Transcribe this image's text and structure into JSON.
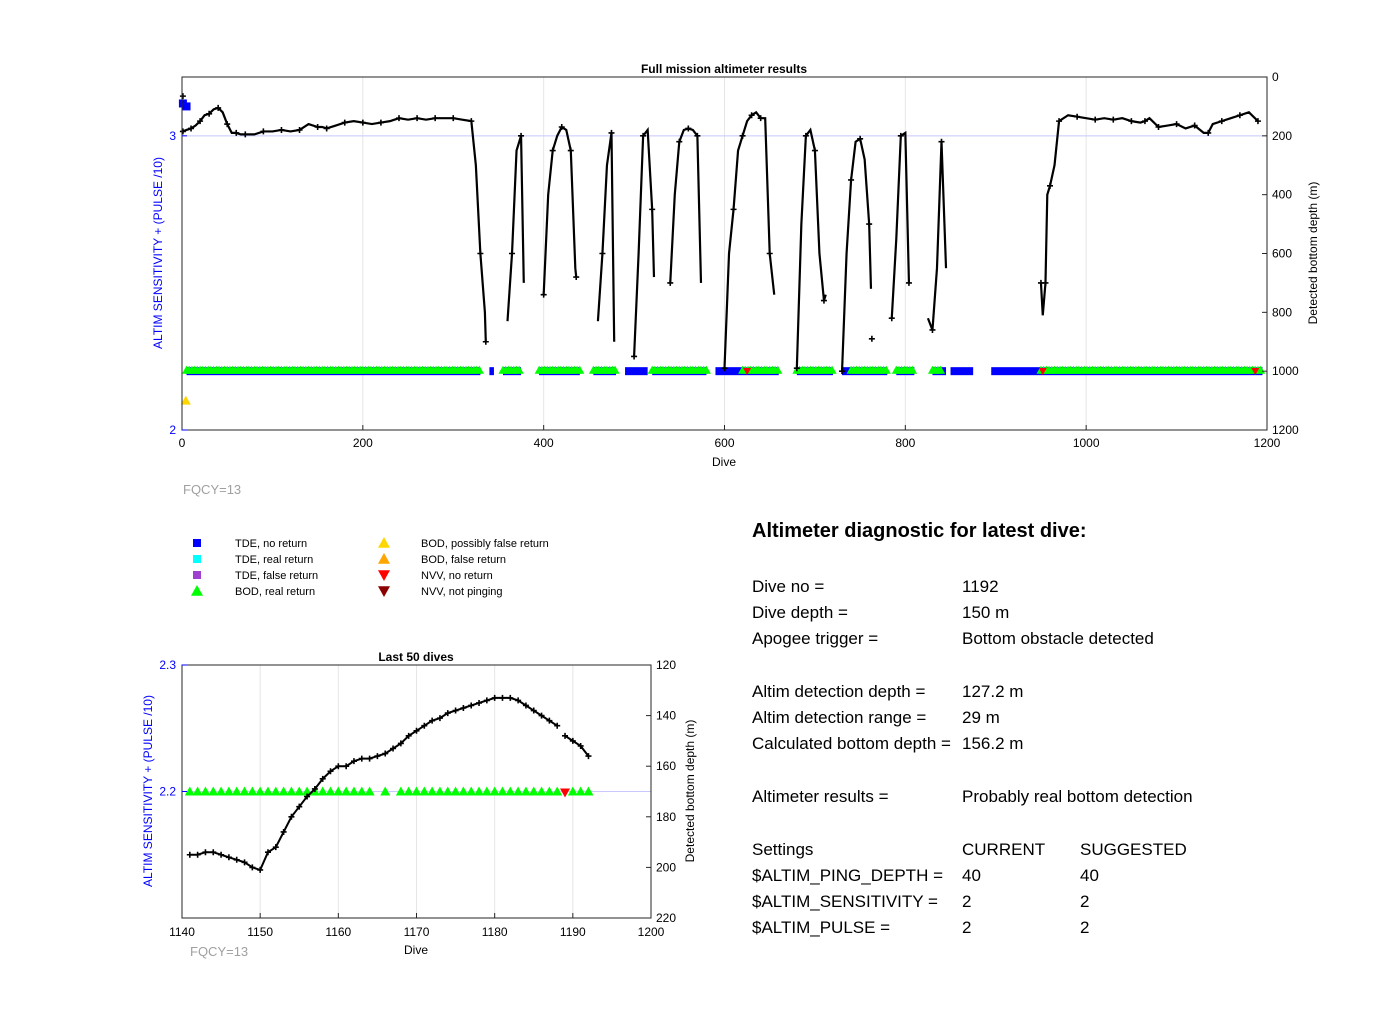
{
  "colors": {
    "tde_no_return": "#0000ff",
    "tde_real_return": "#00ffff",
    "tde_false_return": "#a040d0",
    "bod_real_return": "#00ff00",
    "bod_possibly_false": "#ffd700",
    "bod_false_return": "#ffa500",
    "nvv_no_return": "#ff0000",
    "nvv_not_pinging": "#8b0000",
    "left_axis": "#0000ff",
    "grid": "#e6e6e6",
    "fqcy": "#a0a0a0"
  },
  "main_chart": {
    "title": "Full mission altimeter results",
    "xlabel": "Dive",
    "ylabel_left": "ALTIM SENSITIVITY + (PULSE /10)",
    "ylabel_right": "Detected bottom depth (m)",
    "fqcy": "FQCY=13"
  },
  "inset_chart": {
    "title": "Last 50 dives",
    "xlabel": "Dive",
    "ylabel_left": "ALTIM SENSITIVITY + (PULSE /10)",
    "ylabel_right": "Detected bottom depth (m)",
    "fqcy": "FQCY=13"
  },
  "legend": [
    {
      "label": "TDE, no return",
      "marker": "square",
      "color_key": "tde_no_return"
    },
    {
      "label": "TDE, real return",
      "marker": "square",
      "color_key": "tde_real_return"
    },
    {
      "label": "TDE, false return",
      "marker": "square",
      "color_key": "tde_false_return"
    },
    {
      "label": "BOD, real return",
      "marker": "triangle-up",
      "color_key": "bod_real_return"
    },
    {
      "label": "BOD, possibly false return",
      "marker": "triangle-up",
      "color_key": "bod_possibly_false"
    },
    {
      "label": "BOD, false return",
      "marker": "triangle-up",
      "color_key": "bod_false_return"
    },
    {
      "label": "NVV, no return",
      "marker": "triangle-down",
      "color_key": "nvv_no_return"
    },
    {
      "label": "NVV, not pinging",
      "marker": "triangle-down",
      "color_key": "nvv_not_pinging"
    }
  ],
  "diagnostic": {
    "title": "Altimeter diagnostic for latest dive:",
    "dive_no_label": "Dive no =",
    "dive_no": "1192",
    "dive_depth_label": "Dive depth =",
    "dive_depth": "150 m",
    "apogee_label": "Apogee trigger =",
    "apogee": "Bottom obstacle detected",
    "altim_depth_label": "Altim detection depth =",
    "altim_depth": "127.2 m",
    "altim_range_label": "Altim detection range =",
    "altim_range": "29 m",
    "calc_depth_label": "Calculated bottom depth =",
    "calc_depth": "156.2 m",
    "results_label": "Altimeter results =",
    "results": "Probably real bottom detection",
    "settings_label": "Settings",
    "current_label": "CURRENT",
    "suggested_label": "SUGGESTED",
    "settings": [
      {
        "name": "$ALTIM_PING_DEPTH =",
        "current": "40",
        "suggested": "40"
      },
      {
        "name": "$ALTIM_SENSITIVITY =",
        "current": "2",
        "suggested": "2"
      },
      {
        "name": "$ALTIM_PULSE =",
        "current": "2",
        "suggested": "2"
      }
    ]
  },
  "chart_data": [
    {
      "type": "scatter",
      "name": "main",
      "title": "Full mission altimeter results",
      "xlabel": "Dive",
      "ylabel_left": "ALTIM SENSITIVITY + (PULSE /10)",
      "ylabel_right": "Detected bottom depth (m)",
      "xlim": [
        0,
        1200
      ],
      "ylim_left": [
        2,
        3.2
      ],
      "ylim_right_reversed": [
        0,
        1200
      ],
      "xticks": [
        0,
        200,
        400,
        600,
        800,
        1000,
        1200
      ],
      "yticks_left": [
        2,
        3
      ],
      "yticks_right": [
        0,
        200,
        400,
        600,
        800,
        1000,
        1200
      ],
      "grid": true,
      "bottom_depth": {
        "x": [
          1,
          5,
          10,
          15,
          20,
          25,
          30,
          35,
          40,
          45,
          50,
          55,
          60,
          65,
          70,
          80,
          90,
          100,
          110,
          120,
          130,
          140,
          150,
          155,
          160,
          170,
          180,
          190,
          200,
          210,
          220,
          230,
          240,
          250,
          260,
          270,
          280,
          290,
          300,
          310,
          320,
          325,
          330,
          335,
          336,
          360,
          365,
          370,
          375,
          378,
          400,
          405,
          410,
          415,
          420,
          425,
          430,
          435,
          436,
          460,
          465,
          470,
          475,
          478,
          500,
          505,
          510,
          515,
          520,
          522,
          540,
          545,
          550,
          555,
          560,
          565,
          570,
          574,
          600,
          605,
          610,
          615,
          620,
          625,
          630,
          635,
          640,
          645,
          650,
          655,
          680,
          685,
          690,
          695,
          700,
          705,
          710,
          712,
          730,
          735,
          740,
          745,
          750,
          755,
          760,
          762,
          785,
          790,
          795,
          800,
          804,
          825,
          830,
          835,
          840,
          845,
          950,
          952,
          955,
          957,
          960,
          965,
          970,
          980,
          990,
          1000,
          1010,
          1020,
          1030,
          1040,
          1050,
          1060,
          1065,
          1070,
          1080,
          1090,
          1100,
          1110,
          1120,
          1130,
          1135,
          1140,
          1150,
          1160,
          1170,
          1180,
          1190
        ],
        "y": [
          185,
          180,
          175,
          165,
          150,
          130,
          125,
          110,
          105,
          120,
          160,
          190,
          190,
          195,
          195,
          195,
          185,
          185,
          180,
          185,
          180,
          160,
          170,
          170,
          175,
          165,
          155,
          150,
          155,
          160,
          155,
          150,
          140,
          145,
          140,
          145,
          140,
          140,
          140,
          145,
          150,
          300,
          600,
          800,
          900,
          830,
          600,
          250,
          200,
          700,
          740,
          400,
          250,
          200,
          170,
          180,
          250,
          650,
          680,
          830,
          600,
          300,
          190,
          900,
          950,
          600,
          200,
          180,
          450,
          680,
          700,
          400,
          220,
          180,
          175,
          180,
          200,
          700,
          990,
          600,
          450,
          250,
          200,
          150,
          130,
          120,
          140,
          140,
          600,
          740,
          990,
          500,
          200,
          180,
          250,
          600,
          760,
          740,
          1000,
          600,
          350,
          220,
          210,
          280,
          500,
          720,
          820,
          550,
          200,
          190,
          700,
          820,
          860,
          650,
          220,
          650,
          700,
          810,
          700,
          400,
          370,
          300,
          150,
          130,
          135,
          140,
          145,
          140,
          145,
          140,
          150,
          155,
          150,
          140,
          170,
          165,
          160,
          175,
          165,
          190,
          190,
          160,
          150,
          140,
          130,
          120,
          150
        ]
      },
      "bod_real_return_band": [
        [
          5,
          330
        ],
        [
          355,
          375
        ],
        [
          395,
          440
        ],
        [
          455,
          480
        ],
        [
          520,
          580
        ],
        [
          620,
          660
        ],
        [
          680,
          720
        ],
        [
          740,
          780
        ],
        [
          790,
          810
        ],
        [
          830,
          840
        ],
        [
          950,
          1195
        ]
      ],
      "tde_no_return_band": [
        [
          5,
          330
        ],
        [
          340,
          345
        ],
        [
          355,
          375
        ],
        [
          395,
          440
        ],
        [
          455,
          480
        ],
        [
          490,
          515
        ],
        [
          520,
          580
        ],
        [
          590,
          660
        ],
        [
          680,
          720
        ],
        [
          730,
          780
        ],
        [
          790,
          810
        ],
        [
          830,
          845
        ],
        [
          850,
          875
        ],
        [
          895,
          955
        ],
        [
          955,
          1195
        ]
      ],
      "markers": [
        {
          "type": "tde_no_return",
          "x": [
            1,
            5
          ],
          "y": [
            3.11,
            3.1
          ]
        },
        {
          "type": "bod_possibly_false",
          "x": [
            2
          ],
          "y": [
            2.1
          ]
        },
        {
          "type": "nvv_no_return",
          "x": [
            625,
            952,
            1187
          ],
          "y": [
            2.2,
            2.2,
            2.2
          ]
        }
      ]
    },
    {
      "type": "scatter",
      "name": "inset",
      "title": "Last 50 dives",
      "xlabel": "Dive",
      "ylabel_left": "ALTIM SENSITIVITY + (PULSE /10)",
      "ylabel_right": "Detected bottom depth (m)",
      "xlim": [
        1140,
        1200
      ],
      "ylim_left": [
        2.1,
        2.3
      ],
      "ylim_right_reversed": [
        120,
        220
      ],
      "xticks": [
        1140,
        1150,
        1160,
        1170,
        1180,
        1190,
        1200
      ],
      "yticks_left": [
        2.2,
        2.3
      ],
      "yticks_right": [
        120,
        140,
        160,
        180,
        200,
        220
      ],
      "grid": true,
      "bottom_depth": {
        "x": [
          1141,
          1142,
          1143,
          1144,
          1145,
          1146,
          1147,
          1148,
          1149,
          1150,
          1151,
          1152,
          1153,
          1154,
          1155,
          1156,
          1157,
          1158,
          1159,
          1160,
          1161,
          1162,
          1163,
          1164,
          1165,
          1166,
          1167,
          1168,
          1169,
          1170,
          1171,
          1172,
          1173,
          1174,
          1175,
          1176,
          1177,
          1178,
          1179,
          1180,
          1181,
          1182,
          1183,
          1184,
          1185,
          1186,
          1187,
          1188
        ],
        "y": [
          195,
          195,
          194,
          194,
          195,
          196,
          197,
          198,
          200,
          201,
          194,
          192,
          186,
          180,
          176,
          172,
          169,
          165,
          162,
          160,
          160,
          158,
          157,
          157,
          156,
          155,
          153,
          151,
          148,
          146,
          144,
          142,
          141,
          139,
          138,
          137,
          136,
          135,
          134,
          133,
          133,
          133,
          134,
          136,
          138,
          140,
          142,
          144
        ],
        "x2": [
          1189,
          1190,
          1191,
          1192
        ],
        "y2": [
          148,
          150,
          152,
          156
        ]
      },
      "bod_real_return_x": [
        1141,
        1142,
        1143,
        1144,
        1145,
        1146,
        1147,
        1148,
        1149,
        1150,
        1151,
        1152,
        1153,
        1154,
        1155,
        1156,
        1157,
        1158,
        1159,
        1160,
        1161,
        1162,
        1163,
        1164,
        1166,
        1168,
        1169,
        1170,
        1171,
        1172,
        1173,
        1174,
        1175,
        1176,
        1177,
        1178,
        1179,
        1180,
        1181,
        1182,
        1183,
        1184,
        1185,
        1186,
        1187,
        1188,
        1190,
        1191,
        1192
      ],
      "nvv_no_return_x": [
        1189
      ],
      "marker_y": 2.2
    }
  ]
}
